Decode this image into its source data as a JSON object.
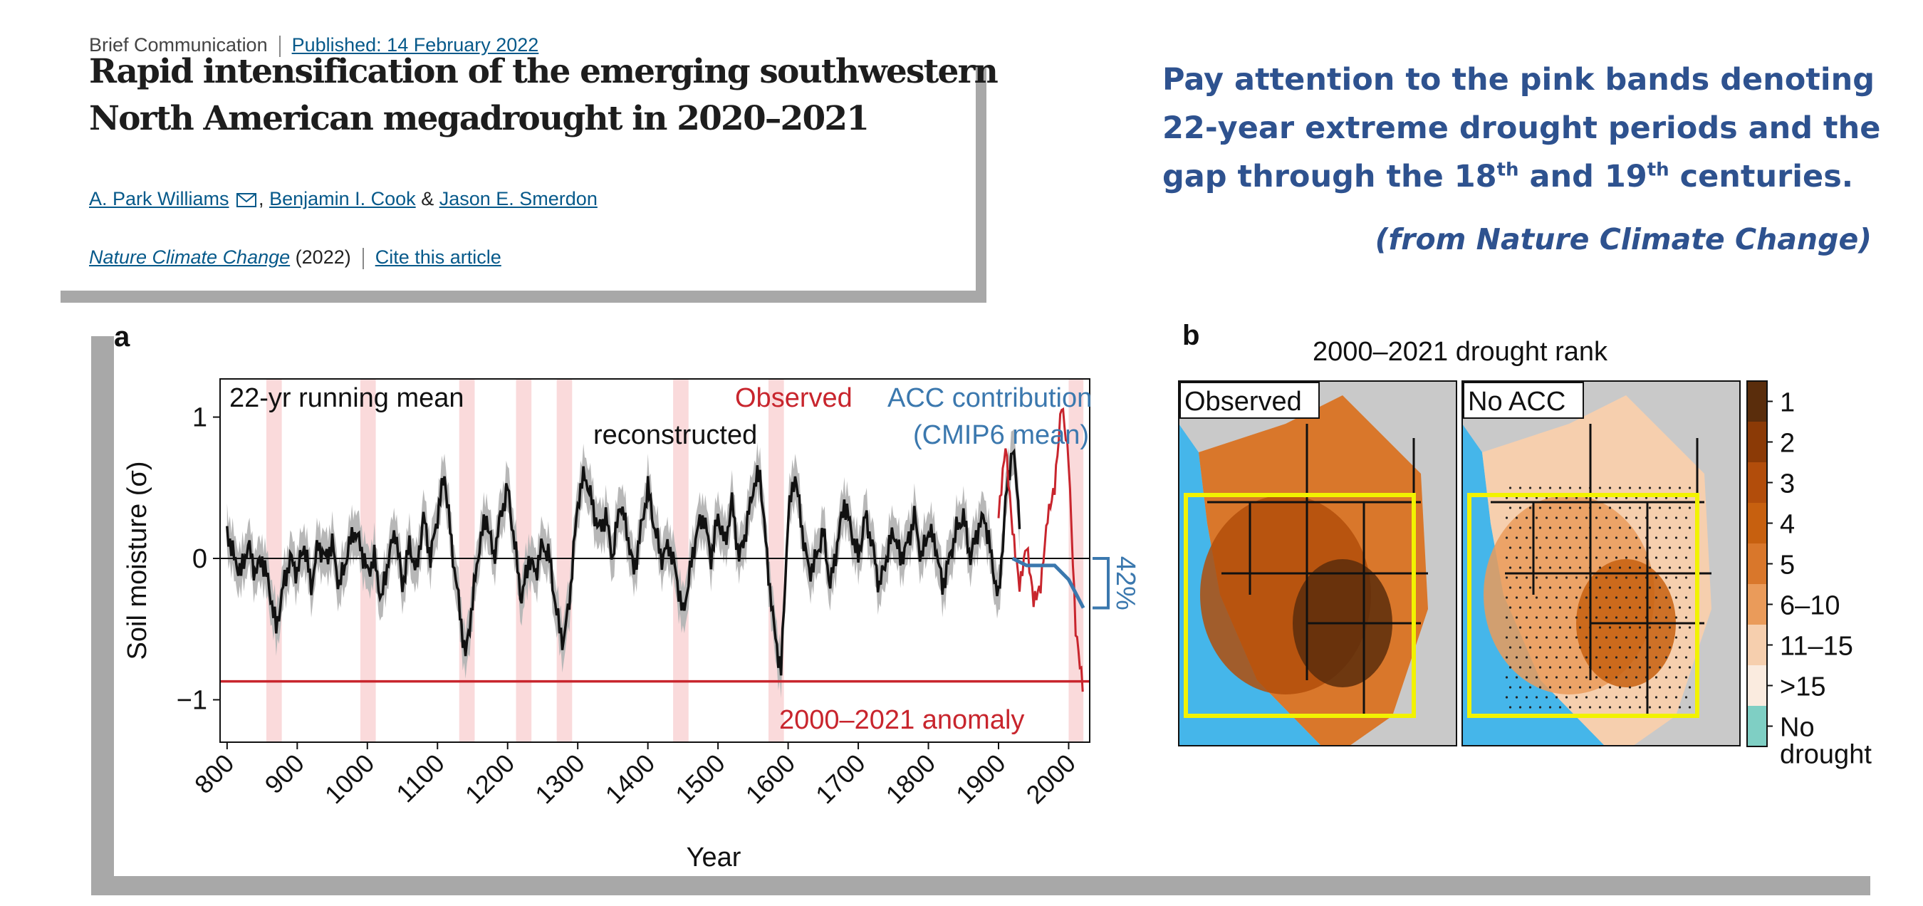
{
  "article": {
    "type": "Brief Communication",
    "published": "Published: 14 February 2022",
    "title_line1": "Rapid intensification of the emerging southwestern",
    "title_line2": "North American megadrought in 2020–2021",
    "authors": [
      "A. Park Williams",
      "Benjamin I. Cook",
      "Jason E. Smerdon"
    ],
    "author_sep1": ",",
    "author_sep2": "&",
    "journal": "Nature Climate Change",
    "year": "(2022)",
    "cite": "Cite this article"
  },
  "annotation": {
    "line1": "Pay attention to the pink bands denoting",
    "line2": "22-year extreme drought periods and the",
    "line3_a": "gap through the 18",
    "line3_sup1": "th",
    "line3_b": " and 19",
    "line3_sup2": "th",
    "line3_c": " centuries.",
    "source": "(from Nature Climate Change)"
  },
  "colors": {
    "observed": "#c8252d",
    "acc": "#3b78ae",
    "band": "#fadadb",
    "annotation": "#2e528f",
    "link": "#06598a",
    "highlight_box": "#f2f200",
    "ocean": "#45b6ea"
  },
  "chart_data": [
    {
      "type": "line",
      "panel": "a",
      "xlabel": "Year",
      "ylabel": "Soil moisture (σ)",
      "xlim": [
        790,
        2030
      ],
      "ylim": [
        -1.3,
        1.27
      ],
      "xticks": [
        800,
        900,
        1000,
        1100,
        1200,
        1300,
        1400,
        1500,
        1600,
        1700,
        1800,
        1900,
        2000
      ],
      "yticks": [
        1,
        0,
        -1
      ],
      "ytick_labels": [
        "1",
        "0",
        "−1"
      ],
      "labels": {
        "running_mean": "22-yr running mean",
        "observed": "Observed",
        "reconstructed": "reconstructed",
        "acc_line1": "ACC contribution",
        "acc_line2": "(CMIP6 mean)",
        "anomaly": "2000–2021 anomaly",
        "acc_pct": "42%"
      },
      "anomaly_value": -0.87,
      "drought_bands": [
        [
          856,
          878
        ],
        [
          990,
          1012
        ],
        [
          1131,
          1153
        ],
        [
          1212,
          1234
        ],
        [
          1270,
          1292
        ],
        [
          1436,
          1458
        ],
        [
          1572,
          1594
        ],
        [
          2000,
          2021
        ]
      ],
      "reconstructed": {
        "x": [
          800,
          810,
          820,
          830,
          840,
          850,
          860,
          870,
          880,
          890,
          900,
          910,
          920,
          930,
          940,
          950,
          960,
          970,
          980,
          990,
          1000,
          1010,
          1020,
          1030,
          1040,
          1050,
          1060,
          1070,
          1080,
          1090,
          1100,
          1110,
          1120,
          1130,
          1140,
          1150,
          1160,
          1170,
          1180,
          1190,
          1200,
          1210,
          1220,
          1230,
          1240,
          1250,
          1260,
          1270,
          1280,
          1290,
          1300,
          1310,
          1320,
          1330,
          1340,
          1350,
          1360,
          1370,
          1380,
          1390,
          1400,
          1410,
          1420,
          1430,
          1440,
          1450,
          1460,
          1470,
          1480,
          1490,
          1500,
          1510,
          1520,
          1530,
          1540,
          1550,
          1560,
          1570,
          1580,
          1590,
          1600,
          1610,
          1620,
          1630,
          1640,
          1650,
          1660,
          1670,
          1680,
          1690,
          1700,
          1710,
          1720,
          1730,
          1740,
          1750,
          1760,
          1770,
          1780,
          1790,
          1800,
          1810,
          1820,
          1830,
          1840,
          1850,
          1860,
          1870,
          1880,
          1890,
          1900,
          1910,
          1920,
          1930
        ],
        "y": [
          0.2,
          0.0,
          -0.1,
          0.1,
          -0.1,
          0.0,
          -0.2,
          -0.5,
          -0.2,
          0.0,
          -0.1,
          0.1,
          -0.2,
          0.1,
          0.0,
          0.1,
          -0.2,
          0.0,
          0.2,
          0.1,
          -0.1,
          0.0,
          -0.3,
          0.0,
          0.2,
          -0.2,
          0.1,
          -0.1,
          0.3,
          0.0,
          0.3,
          0.6,
          0.1,
          -0.3,
          -0.7,
          -0.3,
          0.1,
          0.3,
          0.0,
          0.3,
          0.5,
          0.1,
          -0.3,
          0.0,
          -0.1,
          0.1,
          0.0,
          -0.4,
          -0.6,
          -0.2,
          0.4,
          0.6,
          0.4,
          0.2,
          0.3,
          0.0,
          0.4,
          0.2,
          -0.1,
          0.2,
          0.5,
          0.2,
          0.0,
          0.1,
          -0.1,
          -0.4,
          -0.1,
          0.2,
          0.3,
          0.0,
          0.3,
          0.1,
          0.4,
          0.0,
          0.2,
          0.5,
          0.6,
          0.0,
          -0.5,
          -0.8,
          0.3,
          0.6,
          0.2,
          -0.1,
          0.0,
          0.2,
          -0.2,
          0.1,
          0.4,
          0.2,
          0.0,
          0.3,
          0.1,
          -0.2,
          0.0,
          0.2,
          0.0,
          0.1,
          0.3,
          0.0,
          0.2,
          0.1,
          -0.2,
          0.0,
          0.2,
          0.3,
          0.0,
          0.2,
          0.3,
          0.0,
          -0.3,
          0.4,
          0.8,
          0.3
        ]
      },
      "observed": {
        "x": [
          1900,
          1910,
          1920,
          1930,
          1940,
          1950,
          1960,
          1970,
          1980,
          1990,
          2000,
          2010,
          2020
        ],
        "y": [
          0.3,
          0.8,
          0.2,
          -0.2,
          0.1,
          -0.3,
          -0.2,
          0.3,
          0.5,
          1.1,
          0.7,
          -0.5,
          -0.9
        ]
      },
      "acc": {
        "x": [
          1920,
          1940,
          1960,
          1980,
          2000,
          2021
        ],
        "y": [
          0.0,
          -0.05,
          -0.05,
          -0.05,
          -0.15,
          -0.35
        ]
      }
    },
    {
      "type": "heatmap",
      "panel": "b",
      "title": "2000–2021 drought rank",
      "maps": [
        "Observed",
        "No ACC"
      ],
      "legend": [
        "1",
        "2",
        "3",
        "4",
        "5",
        "6–10",
        "11–15",
        ">15",
        "No",
        "drought"
      ],
      "legend_colors": [
        "#5a2d0c",
        "#8b3a06",
        "#b24d0b",
        "#c7600f",
        "#d9772b",
        "#ea9b5a",
        "#f6cfae",
        "#faebdf",
        "#7fcfc4"
      ]
    }
  ]
}
